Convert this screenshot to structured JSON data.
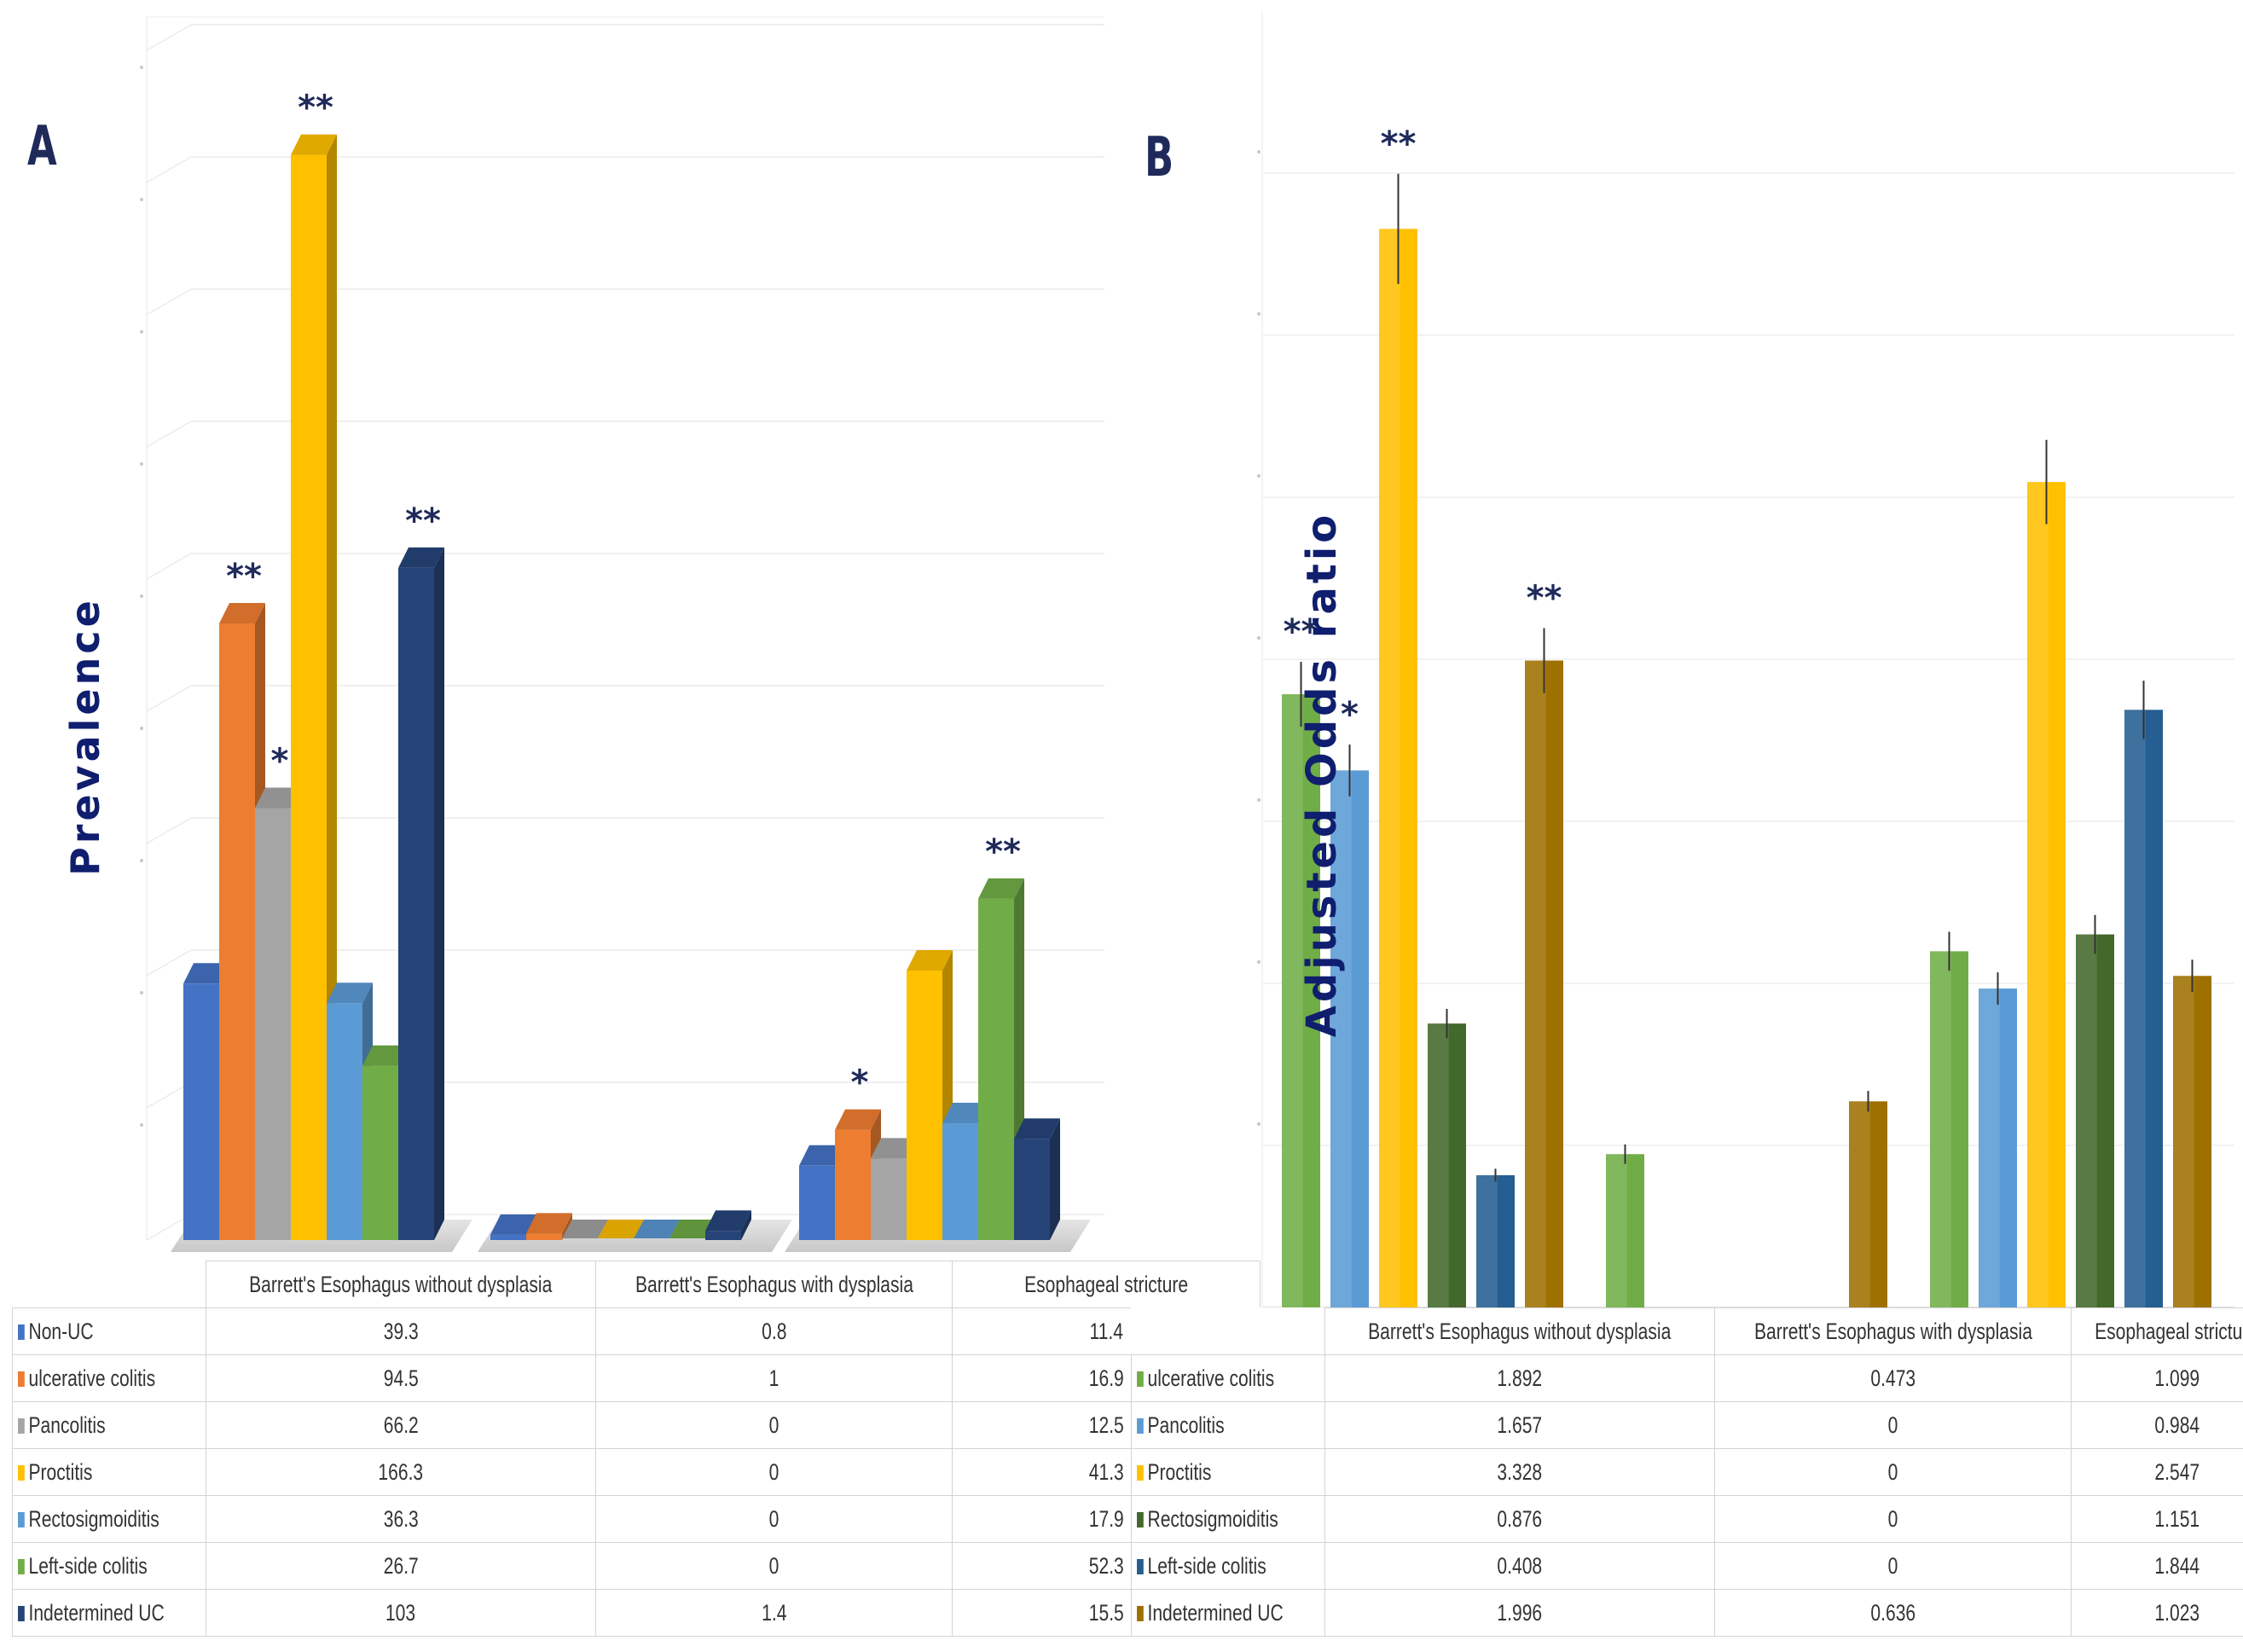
{
  "chart_data": [
    {
      "panel": "A",
      "type": "bar",
      "title": "",
      "xlabel": "",
      "ylabel": "Prevalence",
      "ylim": [
        0,
        180
      ],
      "categories": [
        "Barrett's Esophagus without dysplasia",
        "Barrett's Esophagus with dysplasia",
        "Esophageal stricture"
      ],
      "series": [
        {
          "name": "Non-UC",
          "color": "#4472c4",
          "values": [
            39.3,
            0.8,
            11.4
          ],
          "marks": [
            "",
            "",
            ""
          ]
        },
        {
          "name": "ulcerative colitis",
          "color": "#ed7d31",
          "values": [
            94.5,
            1,
            16.9
          ],
          "marks": [
            "**",
            "",
            "*"
          ]
        },
        {
          "name": "Pancolitis",
          "color": "#a5a5a5",
          "values": [
            66.2,
            0,
            12.5
          ],
          "marks": [
            "*",
            "",
            ""
          ]
        },
        {
          "name": "Proctitis",
          "color": "#ffc000",
          "values": [
            166.3,
            0,
            41.3
          ],
          "marks": [
            "**",
            "",
            ""
          ]
        },
        {
          "name": "Rectosigmoiditis",
          "color": "#5b9bd5",
          "values": [
            36.3,
            0,
            17.9
          ],
          "marks": [
            "",
            "",
            ""
          ]
        },
        {
          "name": "Left-side colitis",
          "color": "#70ad47",
          "values": [
            26.7,
            0,
            52.3
          ],
          "marks": [
            "",
            "",
            "**"
          ]
        },
        {
          "name": "Indetermined UC",
          "color": "#264478",
          "values": [
            103,
            1.4,
            15.5
          ],
          "marks": [
            "**",
            "",
            ""
          ]
        }
      ],
      "table_values": [
        [
          "39.3",
          "0.8",
          "11.4"
        ],
        [
          "94.5",
          "1",
          "16.9"
        ],
        [
          "66.2",
          "0",
          "12.5"
        ],
        [
          "166.3",
          "0",
          "41.3"
        ],
        [
          "36.3",
          "0",
          "17.9"
        ],
        [
          "26.7",
          "0",
          "52.3"
        ],
        [
          "103",
          "1.4",
          "15.5"
        ]
      ]
    },
    {
      "panel": "B",
      "type": "bar",
      "title": "",
      "xlabel": "",
      "ylabel": "Adjusted Odds ratio",
      "ylim": [
        0,
        3.5
      ],
      "categories": [
        "Barrett's Esophagus without dysplasia",
        "Barrett's Esophagus with dysplasia",
        "Esophageal stricture"
      ],
      "series": [
        {
          "name": "ulcerative colitis",
          "color": "#70ad47",
          "values": [
            1.892,
            0.473,
            1.099
          ],
          "errors": [
            0.1,
            0.03,
            0.06
          ],
          "marks": [
            "**",
            "",
            ""
          ]
        },
        {
          "name": "Pancolitis",
          "color": "#5b9bd5",
          "values": [
            1.657,
            0,
            0.984
          ],
          "errors": [
            0.08,
            0,
            0.05
          ],
          "marks": [
            "*",
            "",
            ""
          ]
        },
        {
          "name": "Proctitis",
          "color": "#ffc000",
          "values": [
            3.328,
            0,
            2.547
          ],
          "errors": [
            0.17,
            0,
            0.13
          ],
          "marks": [
            "**",
            "",
            ""
          ]
        },
        {
          "name": "Rectosigmoiditis",
          "color": "#43682b",
          "values": [
            0.876,
            0,
            1.151
          ],
          "errors": [
            0.045,
            0,
            0.06
          ],
          "marks": [
            "",
            "",
            ""
          ]
        },
        {
          "name": "Left-side colitis",
          "color": "#255e91",
          "values": [
            0.408,
            0,
            1.844
          ],
          "errors": [
            0.02,
            0,
            0.09
          ],
          "marks": [
            "",
            "",
            ""
          ]
        },
        {
          "name": "Indetermined UC",
          "color": "#9e7000",
          "values": [
            1.996,
            0.636,
            1.023
          ],
          "errors": [
            0.1,
            0.032,
            0.05
          ],
          "marks": [
            "**",
            "",
            ""
          ]
        }
      ],
      "table_values": [
        [
          "1.892",
          "0.473",
          "1.099"
        ],
        [
          "1.657",
          "0",
          "0.984"
        ],
        [
          "3.328",
          "0",
          "2.547"
        ],
        [
          "0.876",
          "0",
          "1.151"
        ],
        [
          "0.408",
          "0",
          "1.844"
        ],
        [
          "1.996",
          "0.636",
          "1.023"
        ]
      ]
    }
  ],
  "panels": {
    "a_letter": "A",
    "b_letter": "B",
    "a_ylabel": "Prevalence",
    "b_ylabel": "Adjusted Odds ratio"
  }
}
